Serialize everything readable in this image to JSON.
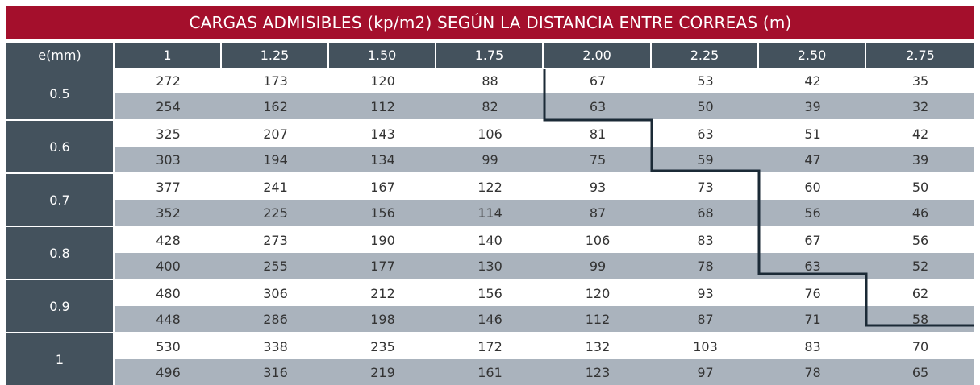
{
  "title": "CARGAS ADMISIBLES (kp/m2) SEGÚN LA DISTANCIA ENTRE CORREAS (m)",
  "header": {
    "first": "e(mm)",
    "distances": [
      "1",
      "1.25",
      "1.50",
      "1.75",
      "2.00",
      "2.25",
      "2.50",
      "2.75"
    ]
  },
  "groups": [
    {
      "e": "0.5",
      "rows": [
        [
          "272",
          "173",
          "120",
          "88",
          "67",
          "53",
          "42",
          "35"
        ],
        [
          "254",
          "162",
          "112",
          "82",
          "63",
          "50",
          "39",
          "32"
        ]
      ]
    },
    {
      "e": "0.6",
      "rows": [
        [
          "325",
          "207",
          "143",
          "106",
          "81",
          "63",
          "51",
          "42"
        ],
        [
          "303",
          "194",
          "134",
          "99",
          "75",
          "59",
          "47",
          "39"
        ]
      ]
    },
    {
      "e": "0.7",
      "rows": [
        [
          "377",
          "241",
          "167",
          "122",
          "93",
          "73",
          "60",
          "50"
        ],
        [
          "352",
          "225",
          "156",
          "114",
          "87",
          "68",
          "56",
          "46"
        ]
      ]
    },
    {
      "e": "0.8",
      "rows": [
        [
          "428",
          "273",
          "190",
          "140",
          "106",
          "83",
          "67",
          "56"
        ],
        [
          "400",
          "255",
          "177",
          "130",
          "99",
          "78",
          "63",
          "52"
        ]
      ]
    },
    {
      "e": "0.9",
      "rows": [
        [
          "480",
          "306",
          "212",
          "156",
          "120",
          "93",
          "76",
          "62"
        ],
        [
          "448",
          "286",
          "198",
          "146",
          "112",
          "87",
          "71",
          "58"
        ]
      ]
    },
    {
      "e": "1",
      "rows": [
        [
          "530",
          "338",
          "235",
          "172",
          "132",
          "103",
          "83",
          "70"
        ],
        [
          "496",
          "316",
          "219",
          "161",
          "123",
          "97",
          "78",
          "65"
        ]
      ]
    }
  ],
  "colors": {
    "title_bg": "#a40f2c",
    "header_bg": "#44525d",
    "row_alt_bg": "#aab3bd",
    "boundary_line": "#1b2a36"
  }
}
